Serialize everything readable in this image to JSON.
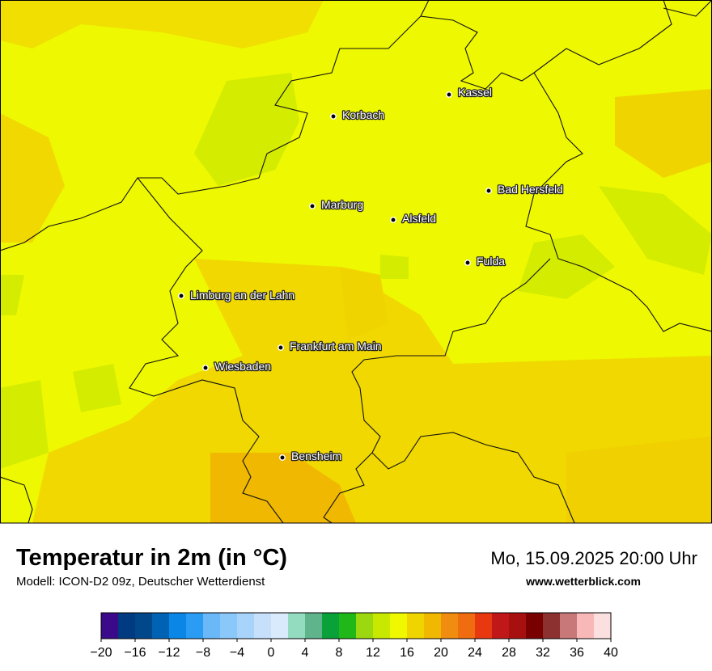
{
  "header": {
    "title": "Temperatur in 2m (in °C)",
    "subtitle": "Modell: ICON-D2 09z, Deutscher Wetterdienst",
    "datetime": "Mo, 15.09.2025 20:00 Uhr",
    "website": "www.wetterblick.com"
  },
  "cities": [
    "Kassel",
    "Korbach",
    "Marburg",
    "Alsfeld",
    "Bad Hersfeld",
    "Fulda",
    "Limburg an der Lahn",
    "Frankfurt am Main",
    "Wiesbaden",
    "Bensheim"
  ],
  "colorbar": {
    "bins": [
      -20,
      -18,
      -16,
      -14,
      -12,
      -10,
      -8,
      -6,
      -4,
      -2,
      0,
      2,
      4,
      6,
      8,
      10,
      12,
      14,
      16,
      18,
      20,
      22,
      24,
      26,
      28,
      30,
      32,
      34,
      36,
      38,
      40
    ],
    "colors": [
      "#3a0a8a",
      "#003a80",
      "#00488a",
      "#0062b4",
      "#0a86e6",
      "#2a9cf4",
      "#6ab8f8",
      "#8ac8fa",
      "#a8d4fc",
      "#c6e0fc",
      "#d8eafc",
      "#94dcc0",
      "#60b48c",
      "#0aa03a",
      "#20b818",
      "#9cd810",
      "#c8e800",
      "#f0f800",
      "#f0d400",
      "#f0b800",
      "#f08c10",
      "#f06c10",
      "#e83810",
      "#c01818",
      "#a81010",
      "#780000",
      "#8c3030",
      "#c87878",
      "#f8b8b8",
      "#fce0e0"
    ],
    "ticks": [
      {
        "value": -20,
        "label": "−20"
      },
      {
        "value": -16,
        "label": "−16"
      },
      {
        "value": -12,
        "label": "−12"
      },
      {
        "value": -8,
        "label": "−8"
      },
      {
        "value": -4,
        "label": "−4"
      },
      0,
      4,
      8,
      12,
      16,
      20,
      24,
      28,
      32,
      36,
      40
    ]
  }
}
